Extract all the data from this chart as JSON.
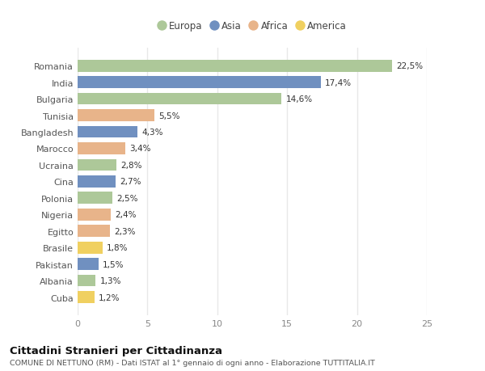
{
  "countries": [
    "Romania",
    "India",
    "Bulgaria",
    "Tunisia",
    "Bangladesh",
    "Marocco",
    "Ucraina",
    "Cina",
    "Polonia",
    "Nigeria",
    "Egitto",
    "Brasile",
    "Pakistan",
    "Albania",
    "Cuba"
  ],
  "values": [
    22.5,
    17.4,
    14.6,
    5.5,
    4.3,
    3.4,
    2.8,
    2.7,
    2.5,
    2.4,
    2.3,
    1.8,
    1.5,
    1.3,
    1.2
  ],
  "labels": [
    "22,5%",
    "17,4%",
    "14,6%",
    "5,5%",
    "4,3%",
    "3,4%",
    "2,8%",
    "2,7%",
    "2,5%",
    "2,4%",
    "2,3%",
    "1,8%",
    "1,5%",
    "1,3%",
    "1,2%"
  ],
  "continents": [
    "Europa",
    "Asia",
    "Europa",
    "Africa",
    "Asia",
    "Africa",
    "Europa",
    "Asia",
    "Europa",
    "Africa",
    "Africa",
    "America",
    "Asia",
    "Europa",
    "America"
  ],
  "colors": {
    "Europa": "#adc899",
    "Asia": "#7090c0",
    "Africa": "#e8b48a",
    "America": "#f0d060"
  },
  "legend_order": [
    "Europa",
    "Asia",
    "Africa",
    "America"
  ],
  "title": "Cittadini Stranieri per Cittadinanza",
  "subtitle": "COMUNE DI NETTUNO (RM) - Dati ISTAT al 1° gennaio di ogni anno - Elaborazione TUTTITALIA.IT",
  "xlim": [
    0,
    25
  ],
  "xticks": [
    0,
    5,
    10,
    15,
    20,
    25
  ],
  "background_color": "#ffffff",
  "grid_color": "#e8e8e8",
  "bar_height": 0.72
}
